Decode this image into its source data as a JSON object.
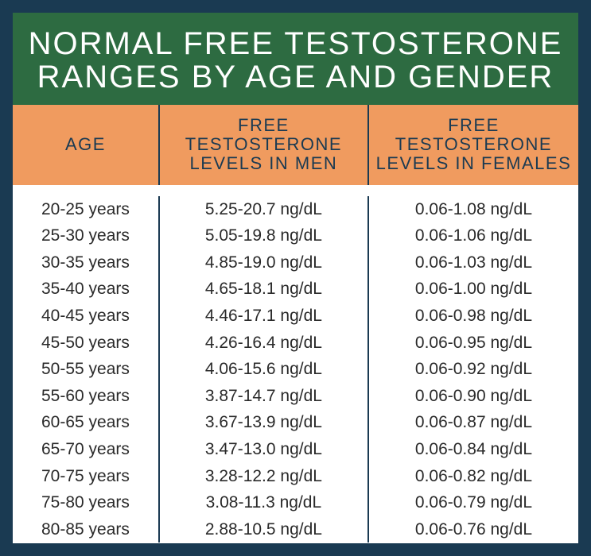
{
  "title": "NORMAL FREE TESTOSTERONE RANGES BY AGE AND GENDER",
  "colors": {
    "outer_border": "#1a3a52",
    "title_bg": "#2d6b41",
    "title_text": "#ffffff",
    "header_bg": "#f09b5f",
    "header_text": "#1a3a52",
    "body_bg": "#ffffff",
    "body_text": "#2a2a2a",
    "divider": "#1a3a52"
  },
  "columns": {
    "age": "AGE",
    "men": "FREE TESTOSTERONE LEVELS IN MEN",
    "women": "FREE TESTOSTERONE LEVELS IN FEMALES"
  },
  "column_widths_pct": {
    "age": 26,
    "men": 37,
    "women": 37
  },
  "typography": {
    "title_fontsize": 40,
    "header_fontsize": 22,
    "body_fontsize": 21,
    "title_font": "Impact",
    "header_font": "Impact",
    "body_font": "Arial"
  },
  "rows": [
    {
      "age": "20-25 years",
      "men": "5.25-20.7 ng/dL",
      "women": "0.06-1.08 ng/dL"
    },
    {
      "age": "25-30 years",
      "men": "5.05-19.8 ng/dL",
      "women": "0.06-1.06 ng/dL"
    },
    {
      "age": "30-35 years",
      "men": "4.85-19.0 ng/dL",
      "women": "0.06-1.03 ng/dL"
    },
    {
      "age": "35-40 years",
      "men": "4.65-18.1 ng/dL",
      "women": "0.06-1.00 ng/dL"
    },
    {
      "age": "40-45 years",
      "men": "4.46-17.1 ng/dL",
      "women": "0.06-0.98 ng/dL"
    },
    {
      "age": "45-50 years",
      "men": "4.26-16.4 ng/dL",
      "women": "0.06-0.95 ng/dL"
    },
    {
      "age": "50-55 years",
      "men": "4.06-15.6 ng/dL",
      "women": "0.06-0.92 ng/dL"
    },
    {
      "age": "55-60 years",
      "men": "3.87-14.7 ng/dL",
      "women": "0.06-0.90 ng/dL"
    },
    {
      "age": "60-65 years",
      "men": "3.67-13.9 ng/dL",
      "women": "0.06-0.87 ng/dL"
    },
    {
      "age": "65-70 years",
      "men": "3.47-13.0 ng/dL",
      "women": "0.06-0.84 ng/dL"
    },
    {
      "age": "70-75 years",
      "men": "3.28-12.2 ng/dL",
      "women": "0.06-0.82 ng/dL"
    },
    {
      "age": "75-80 years",
      "men": "3.08-11.3 ng/dL",
      "women": "0.06-0.79 ng/dL"
    },
    {
      "age": "80-85 years",
      "men": "2.88-10.5 ng/dL",
      "women": "0.06-0.76 ng/dL"
    }
  ]
}
